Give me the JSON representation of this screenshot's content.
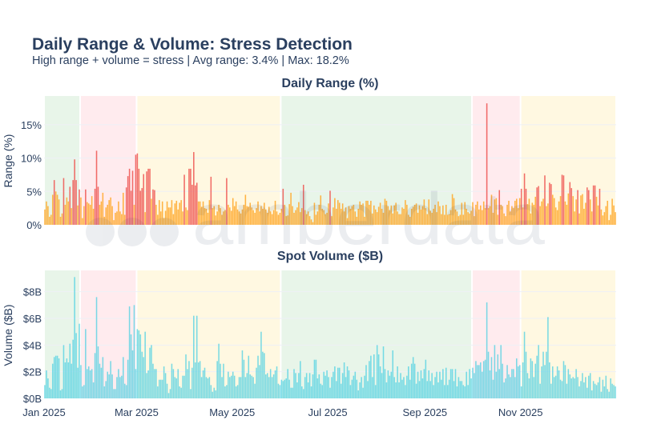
{
  "title": "Daily Range & Volume: Stress Detection",
  "subtitle": "High range + volume = stress | Avg range: 3.4% | Max: 18.2%",
  "watermark": "amberdata",
  "colors": {
    "text": "#2a3f5f",
    "stress_bar": "#ef5350",
    "normal_bar": "#ffa726",
    "volume_bar": "#4dd0e1",
    "regime_green": "#e8f5e9",
    "regime_red": "#ffebee",
    "regime_yellow": "#fff8e1",
    "grid": "#eef0f6"
  },
  "chart_data": [
    {
      "type": "bar",
      "title": "Daily Range (%)",
      "ylabel": "Range (%)",
      "ylim": [
        0,
        19.3
      ],
      "yticks": [
        0,
        5,
        10,
        15
      ],
      "ytick_labels": [
        "0%",
        "5%",
        "10%",
        "15%"
      ],
      "grid": true,
      "stress_threshold_pct": 5,
      "values_by_month": {
        "2025-01": [
          2.3,
          3.5,
          2.8,
          1.2,
          1.5,
          4.5,
          6.7,
          5.0,
          4.5,
          3.8,
          1.2,
          1.7,
          7.0,
          3.0,
          4.1,
          3.5,
          5.7,
          2.5,
          6.7,
          9.8,
          6.7,
          2.9,
          5.3,
          4.1,
          1.0,
          2.8,
          5.3,
          3.4,
          3.2,
          3.0,
          4.3
        ],
        "2025-02": [
          2.4,
          5.4,
          11.1,
          5.7,
          3.0,
          3.5,
          4.8,
          1.2,
          2.6,
          3.0,
          3.7,
          4.1,
          2.8,
          0.7,
          1.8,
          2.0,
          3.5,
          2.0,
          1.6,
          4.8,
          1.5,
          5.6,
          7.3,
          8.4,
          5.1,
          8.1,
          3.0,
          10.5
        ],
        "2025-03": [
          10.7,
          8.4,
          5.1,
          5.5,
          7.6,
          1.9,
          8.0,
          8.4,
          8.4,
          3.9,
          5.3,
          5.2,
          3.0,
          1.5,
          3.7,
          2.0,
          3.5,
          1.0,
          2.1,
          3.5,
          2.6,
          2.6,
          3.7,
          1.6,
          3.2,
          3.6,
          2.3,
          3.3,
          3.7,
          2.0,
          7.5
        ],
        "2025-04": [
          2.6,
          2.2,
          8.4,
          8.4,
          6.0,
          10.9,
          5.9,
          6.3,
          3.5,
          3.5,
          2.7,
          3.5,
          2.5,
          2.4,
          1.8,
          3.7,
          7.2,
          2.5,
          2.8,
          1.4,
          2.0,
          3.0,
          2.5,
          1.5,
          2.0,
          2.2,
          7.0,
          3.0,
          2.6,
          2.1
        ],
        "2025-05": [
          4.0,
          2.8,
          3.5,
          2.3,
          2.0,
          1.7,
          2.3,
          3.0,
          4.5,
          2.8,
          2.7,
          3.3,
          2.6,
          2.2,
          1.8,
          2.5,
          3.5,
          2.0,
          2.8,
          2.4,
          3.3,
          2.3,
          1.8,
          2.7,
          2.0,
          1.6,
          2.2,
          3.6,
          2.0,
          1.5,
          1.8
        ],
        "2025-06": [
          2.4,
          5.4,
          3.0,
          1.3,
          1.4,
          3.1,
          4.8,
          2.8,
          1.8,
          2.2,
          2.6,
          3.4,
          1.9,
          2.5,
          6.0,
          2.2,
          1.6,
          2.0,
          1.3,
          0.8,
          0.4,
          3.3,
          1.5,
          2.0,
          3.0,
          4.4,
          2.4,
          2.2,
          1.6,
          1.8
        ],
        "2025-07": [
          3.2,
          5.1,
          1.3,
          2.6,
          4.0,
          2.4,
          3.7,
          3.3,
          2.4,
          3.2,
          2.0,
          2.6,
          1.0,
          2.8,
          2.4,
          2.8,
          3.0,
          2.0,
          1.2,
          2.4,
          3.5,
          3.0,
          3.2,
          1.2,
          3.6,
          3.6,
          3.0,
          3.6,
          1.7,
          2.9,
          2.3
        ],
        "2025-08": [
          1.9,
          2.7,
          3.3,
          2.4,
          1.8,
          3.9,
          3.6,
          2.8,
          2.2,
          2.9,
          1.7,
          2.9,
          3.3,
          2.0,
          1.6,
          1.6,
          2.6,
          2.4,
          3.7,
          3.0,
          1.5,
          1.2,
          2.4,
          2.7,
          3.0,
          3.2,
          1.8,
          2.9,
          2.3,
          2.8,
          3.8
        ],
        "2025-09": [
          2.5,
          1.6,
          3.8,
          2.1,
          1.8,
          2.4,
          3.0,
          1.9,
          3.5,
          2.8,
          1.6,
          2.9,
          1.5,
          3.0,
          1.5,
          1.6,
          2.2,
          4.6,
          4.0,
          2.3,
          2.0,
          1.3,
          1.5,
          3.3,
          1.5,
          3.4,
          2.4,
          1.9,
          1.7,
          2.1
        ],
        "2025-10": [
          3.4,
          1.3,
          3.0,
          3.5,
          2.3,
          2.9,
          2.2,
          3.5,
          2.5,
          18.2,
          2.5,
          2.8,
          4.5,
          1.8,
          3.8,
          4.0,
          1.5,
          5.2,
          3.0,
          2.8,
          1.7,
          1.3,
          3.0,
          3.6,
          2.0,
          2.8,
          2.5,
          3.6,
          3.9,
          2.5,
          4.0
        ],
        "2025-11": [
          5.4,
          2.6,
          7.7,
          5.4,
          3.1,
          3.9,
          1.7,
          3.3,
          3.0,
          4.2,
          5.6,
          5.8,
          2.8,
          3.5,
          3.9,
          7.4,
          2.8,
          3.2,
          6.3,
          6.1,
          4.5,
          4.0,
          2.6,
          2.2,
          3.5,
          4.3,
          7.5,
          7.4,
          3.5,
          3.0
        ],
        "2025-12": [
          4.7,
          6.4,
          5.5,
          4.3,
          2.0,
          3.8,
          5.2,
          1.7,
          4.4,
          4.6,
          2.4,
          3.3,
          5.6,
          5.2,
          3.8,
          2.0,
          5.9,
          5.9,
          4.2,
          2.9,
          5.4,
          2.3,
          1.4,
          1.9,
          2.8,
          3.6,
          0.7,
          1.5,
          3.9,
          2.9,
          1.9
        ]
      }
    },
    {
      "type": "bar",
      "title": "Spot Volume ($B)",
      "ylabel": "Volume ($B)",
      "ylim": [
        0,
        9.6
      ],
      "yticks": [
        0,
        2,
        4,
        6,
        8
      ],
      "ytick_labels": [
        "$0B",
        "$2B",
        "$4B",
        "$6B",
        "$8B"
      ],
      "grid": true,
      "values_by_month": {
        "2025-01": [
          1.0,
          2.1,
          1.5,
          0.8,
          0.7,
          2.6,
          3.1,
          3.2,
          3.2,
          3.0,
          0.6,
          0.7,
          4.0,
          2.7,
          3.0,
          2.7,
          4.1,
          2.6,
          4.4,
          9.1,
          4.9,
          2.3,
          5.6,
          2.5,
          0.9,
          1.0,
          5.2,
          2.2,
          2.4,
          2.1,
          2.2
        ],
        "2025-02": [
          1.2,
          3.4,
          7.6,
          3.9,
          2.6,
          2.3,
          3.1,
          0.9,
          1.3,
          2.0,
          1.8,
          2.8,
          1.8,
          0.7,
          0.7,
          1.6,
          2.2,
          1.6,
          1.7,
          3.1,
          1.1,
          1.0,
          2.9,
          6.9,
          4.8,
          3.6,
          7.0,
          2.2
        ],
        "2025-03": [
          5.2,
          5.1,
          4.8,
          3.5,
          3.1,
          5.0,
          1.9,
          2.1,
          3.8,
          4.0,
          2.6,
          2.2,
          2.2,
          0.9,
          1.4,
          1.4,
          1.4,
          2.4,
          1.9,
          1.1,
          0.4,
          0.7,
          2.6,
          2.2,
          1.6,
          1.5,
          2.2,
          0.9,
          0.8,
          1.7,
          1.7
        ],
        "2025-04": [
          3.3,
          2.2,
          2.8,
          0.7,
          2.3,
          6.2,
          2.7,
          6.2,
          2.7,
          2.8,
          1.6,
          2.1,
          2.3,
          1.6,
          1.5,
          1.6,
          1.0,
          0.5,
          0.8,
          0.6,
          2.8,
          4.1,
          2.6,
          1.6,
          2.6,
          0.9,
          1.0,
          2.0,
          1.6,
          1.7
        ],
        "2025-05": [
          2.0,
          1.7,
          0.9,
          1.0,
          1.6,
          1.6,
          3.6,
          2.9,
          1.6,
          1.9,
          3.2,
          1.8,
          1.7,
          1.6,
          1.1,
          2.3,
          3.2,
          2.5,
          5.0,
          3.5,
          3.4,
          1.8,
          1.9,
          1.6,
          2.2,
          1.6,
          1.8,
          2.1,
          2.4,
          1.1,
          1.0
        ],
        "2025-06": [
          1.4,
          1.3,
          1.4,
          1.5,
          2.2,
          1.4,
          0.8,
          0.8,
          2.2,
          1.9,
          1.2,
          1.9,
          2.8,
          0.9,
          0.7,
          1.6,
          1.9,
          1.2,
          1.9,
          0.9,
          1.8,
          2.9,
          2.9,
          1.5,
          1.8,
          1.1,
          1.0,
          2.0,
          1.7,
          2.1
        ],
        "2025-07": [
          1.6,
          0.8,
          1.6,
          2.0,
          2.4,
          1.3,
          2.3,
          2.3,
          1.1,
          1.9,
          2.7,
          1.6,
          2.4,
          2.1,
          1.0,
          1.4,
          1.7,
          2.0,
          1.4,
          0.6,
          1.2,
          1.6,
          0.8,
          1.7,
          2.5,
          1.3,
          2.8,
          3.2,
          1.6,
          3.3,
          1.0
        ],
        "2025-08": [
          4.0,
          3.3,
          2.4,
          1.9,
          3.9,
          2.2,
          1.2,
          2.1,
          1.7,
          2.0,
          3.6,
          1.6,
          1.2,
          2.4,
          1.2,
          1.9,
          1.4,
          1.6,
          1.0,
          1.7,
          2.4,
          1.4,
          2.6,
          3.1,
          2.6,
          1.1,
          2.0,
          1.3,
          2.1,
          1.5,
          2.2
        ],
        "2025-09": [
          2.9,
          1.3,
          2.1,
          1.3,
          1.9,
          1.0,
          1.6,
          2.0,
          1.2,
          2.0,
          1.4,
          2.2,
          1.0,
          2.3,
          1.0,
          1.4,
          2.2,
          2.2,
          1.3,
          2.2,
          0.9,
          1.6,
          1.3,
          1.3,
          1.0,
          0.9,
          2.0,
          1.0,
          2.2,
          1.5
        ],
        "2025-10": [
          2.3,
          1.9,
          2.8,
          2.5,
          2.5,
          2.7,
          2.0,
          2.8,
          2.9,
          7.2,
          3.5,
          2.1,
          3.1,
          1.4,
          4.0,
          2.0,
          3.3,
          2.2,
          4.0,
          2.6,
          1.2,
          1.5,
          2.5,
          1.8,
          1.6,
          2.2,
          2.2,
          1.6,
          3.0,
          2.4,
          2.5
        ],
        "2025-11": [
          0.9,
          2.7,
          5.0,
          3.5,
          1.9,
          1.5,
          3.0,
          2.8,
          1.6,
          2.6,
          3.2,
          4.0,
          1.1,
          2.4,
          3.5,
          2.5,
          3.5,
          6.1,
          2.7,
          1.1,
          2.4,
          1.6,
          1.7,
          2.4,
          2.1,
          1.4,
          1.3,
          2.8,
          2.5,
          1.1
        ],
        "2025-12": [
          2.2,
          1.8,
          1.5,
          1.6,
          1.5,
          2.2,
          1.6,
          0.9,
          1.3,
          1.9,
          1.2,
          1.6,
          0.8,
          1.7,
          1.9,
          0.6,
          1.3,
          1.1,
          1.0,
          1.2,
          1.6,
          0.5,
          1.4,
          0.9,
          1.7,
          0.7,
          0.5,
          1.5,
          1.1,
          1.0,
          0.9
        ]
      }
    }
  ],
  "regimes": [
    {
      "start": "2025-01-01",
      "end": "2025-01-23",
      "color": "regime_green"
    },
    {
      "start": "2025-01-24",
      "end": "2025-02-28",
      "color": "regime_red"
    },
    {
      "start": "2025-03-01",
      "end": "2025-05-31",
      "color": "regime_yellow"
    },
    {
      "start": "2025-06-01",
      "end": "2025-09-30",
      "color": "regime_green"
    },
    {
      "start": "2025-10-01",
      "end": "2025-10-31",
      "color": "regime_red"
    },
    {
      "start": "2025-11-01",
      "end": "2025-12-31",
      "color": "regime_yellow"
    }
  ],
  "xaxis": {
    "ticks": [
      "2025-01-01",
      "2025-03-01",
      "2025-05-01",
      "2025-07-01",
      "2025-09-01",
      "2025-11-01"
    ],
    "tick_labels": [
      "Jan 2025",
      "Mar 2025",
      "May 2025",
      "Jul 2025",
      "Sep 2025",
      "Nov 2025"
    ]
  }
}
